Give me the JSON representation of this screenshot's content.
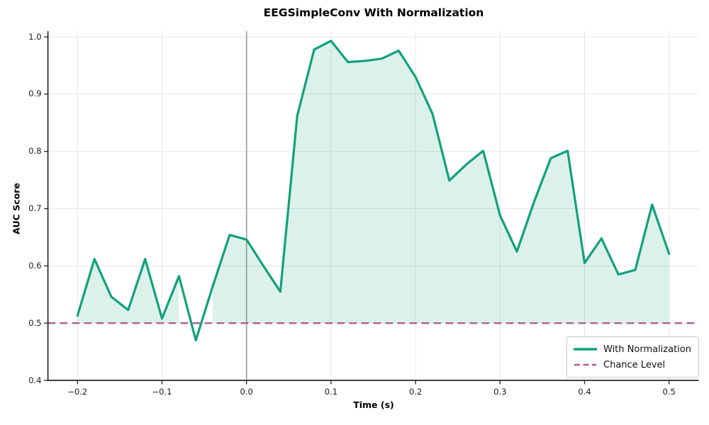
{
  "title": "EEGSimpleConv With Normalization",
  "axis": {
    "xlabel": "Time (s)",
    "ylabel": "AUC Score"
  },
  "legend": {
    "items": [
      {
        "label": "With Normalization",
        "style": "solid"
      },
      {
        "label": "Chance Level",
        "style": "dashed"
      }
    ]
  },
  "chart_data": {
    "type": "line",
    "title": "EEGSimpleConv With Normalization",
    "xlabel": "Time (s)",
    "ylabel": "AUC Score",
    "xlim": [
      -0.235,
      0.535
    ],
    "ylim": [
      0.4,
      1.01
    ],
    "xticks": [
      -0.2,
      -0.1,
      0.0,
      0.1,
      0.2,
      0.3,
      0.4,
      0.5
    ],
    "xtick_labels": [
      "−0.2",
      "−0.1",
      "0.0",
      "0.1",
      "0.2",
      "0.3",
      "0.4",
      "0.5"
    ],
    "yticks": [
      0.4,
      0.5,
      0.6,
      0.7,
      0.8,
      0.9,
      1.0
    ],
    "ytick_labels": [
      "0.4",
      "0.5",
      "0.6",
      "0.7",
      "0.8",
      "0.9",
      "1.0"
    ],
    "grid": true,
    "vline_x": 0.0,
    "baseline": 0.5,
    "legend_position": "lower right",
    "series": [
      {
        "name": "With Normalization",
        "color": "#0fa27c",
        "fill": "rgba(27,158,119,0.15)",
        "fill_above_baseline": true,
        "x": [
          -0.2,
          -0.18,
          -0.16,
          -0.14,
          -0.12,
          -0.1,
          -0.08,
          -0.06,
          -0.04,
          -0.02,
          0.0,
          0.02,
          0.04,
          0.06,
          0.08,
          0.1,
          0.12,
          0.14,
          0.16,
          0.18,
          0.2,
          0.22,
          0.24,
          0.26,
          0.28,
          0.3,
          0.32,
          0.34,
          0.36,
          0.38,
          0.4,
          0.42,
          0.44,
          0.46,
          0.48,
          0.5
        ],
        "y": [
          0.513,
          0.612,
          0.546,
          0.523,
          0.612,
          0.508,
          0.582,
          0.47,
          0.564,
          0.654,
          0.646,
          0.6,
          0.555,
          0.862,
          0.978,
          0.993,
          0.956,
          0.958,
          0.962,
          0.976,
          0.93,
          0.866,
          0.749,
          0.777,
          0.801,
          0.688,
          0.625,
          0.711,
          0.788,
          0.801,
          0.605,
          0.648,
          0.585,
          0.593,
          0.707,
          0.621
        ]
      },
      {
        "name": "Chance Level",
        "color": "#b05c90",
        "style": "dashed",
        "y_const": 0.5
      }
    ],
    "style_colors": {
      "grid": "#e7e7e7",
      "vline": "#999999",
      "spine": "#262626",
      "fill": "rgba(27,158,119,0.15)"
    }
  }
}
